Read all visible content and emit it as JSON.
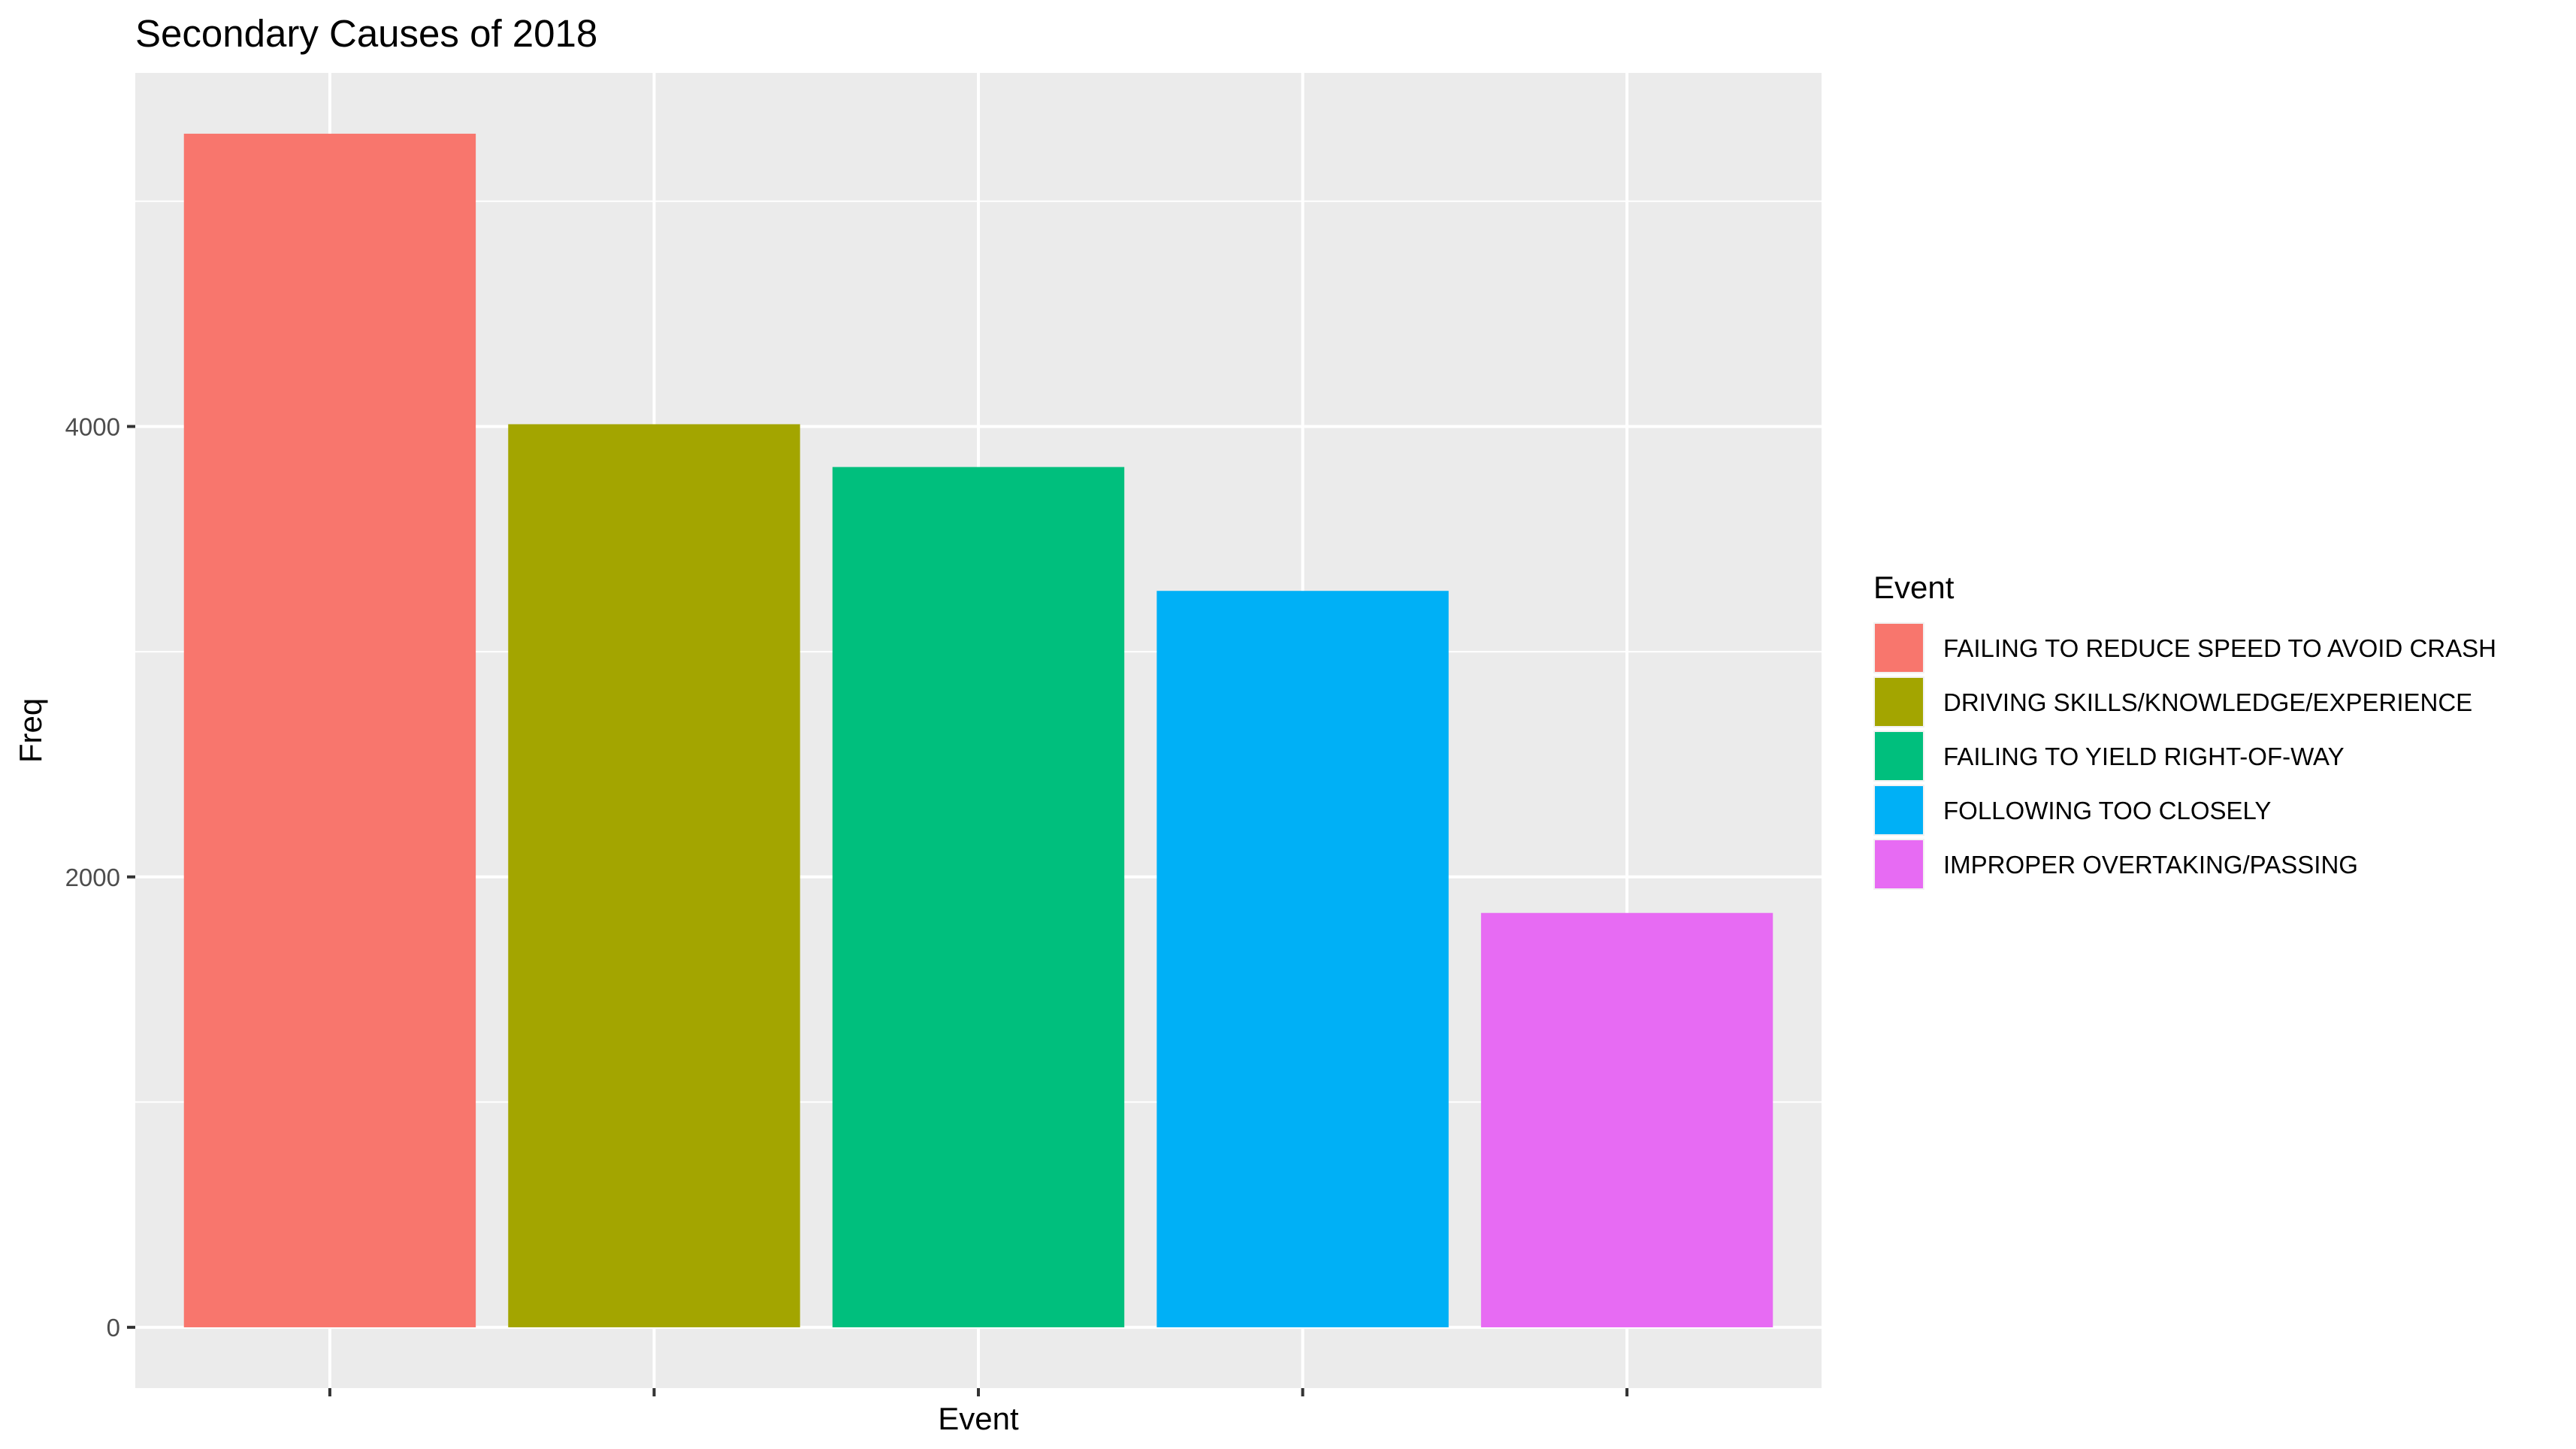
{
  "chart_data": {
    "type": "bar",
    "title": "Secondary Causes of  2018",
    "xlabel": "Event",
    "ylabel": "Freq",
    "categories": [
      "FAILING TO REDUCE SPEED TO AVOID CRASH",
      "DRIVING SKILLS/KNOWLEDGE/EXPERIENCE",
      "FAILING TO YIELD RIGHT-OF-WAY",
      "FOLLOWING TOO CLOSELY",
      "IMPROPER OVERTAKING/PASSING"
    ],
    "values": [
      5300,
      4010,
      3820,
      3270,
      1840
    ],
    "colors": [
      "#F8766D",
      "#A3A500",
      "#00BF7D",
      "#00B0F6",
      "#E76BF3"
    ],
    "ylim": [
      -270,
      5570
    ],
    "yticks": [
      0,
      2000,
      4000
    ],
    "ytick_labels": [
      "0",
      "2000",
      "4000"
    ],
    "x_tick_labels_shown": false,
    "grid": true,
    "panel_background": "#EBEBEB",
    "gridline_color": "#FFFFFF",
    "legend": {
      "title": "Event",
      "position": "right",
      "entries": [
        "FAILING TO REDUCE SPEED TO AVOID CRASH",
        "DRIVING SKILLS/KNOWLEDGE/EXPERIENCE",
        "FAILING TO YIELD RIGHT-OF-WAY",
        "FOLLOWING TOO CLOSELY",
        "IMPROPER OVERTAKING/PASSING"
      ]
    }
  }
}
